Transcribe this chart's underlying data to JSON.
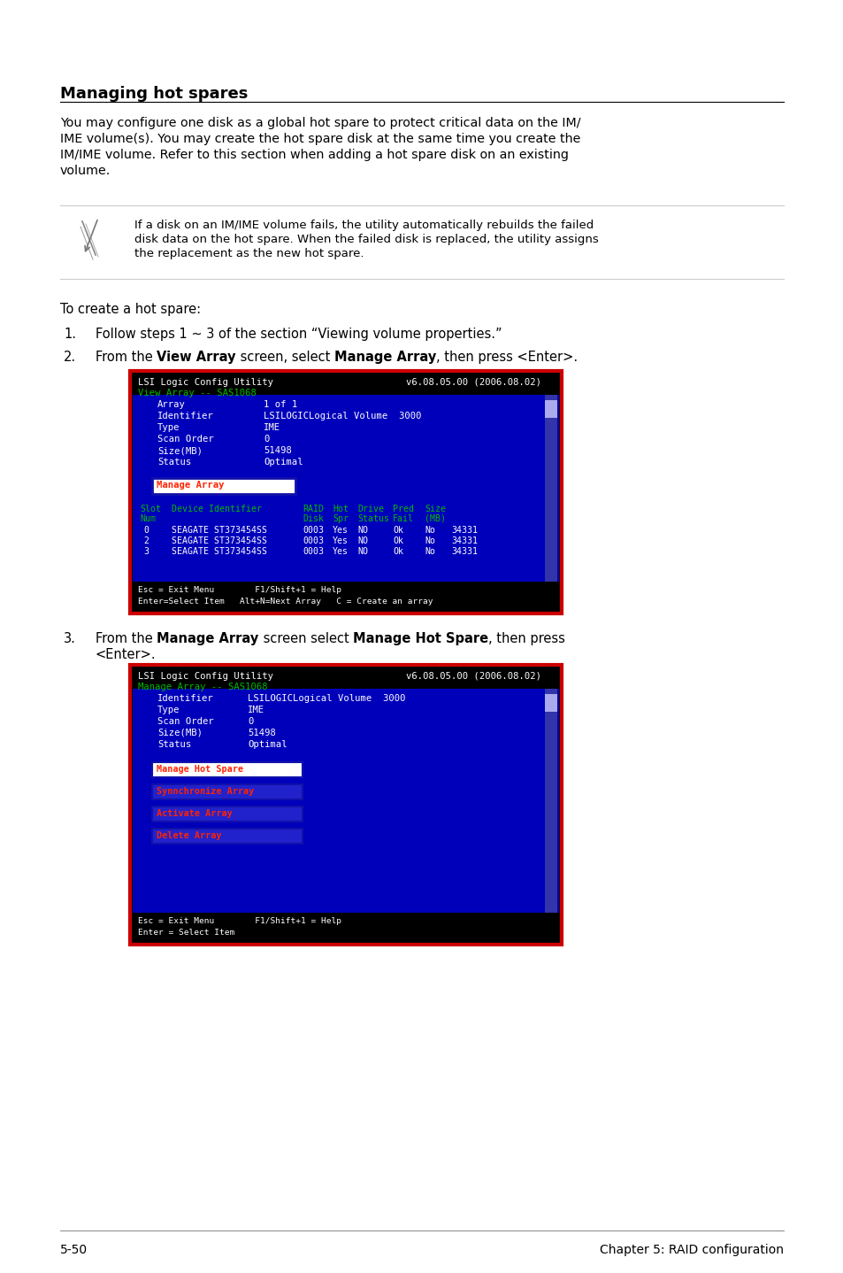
{
  "title": "Managing hot spares",
  "body_text_lines": [
    "You may configure one disk as a global hot spare to protect critical data on the IM/",
    "IME volume(s). You may create the hot spare disk at the same time you create the",
    "IM/IME volume. Refer to this section when adding a hot spare disk on an existing",
    "volume."
  ],
  "note_lines": [
    "If a disk on an IM/IME volume fails, the utility automatically rebuilds the failed",
    "disk data on the hot spare. When the failed disk is replaced, the utility assigns",
    "the replacement as the new hot spare."
  ],
  "steps_intro": "To create a hot spare:",
  "step1_text": "Follow steps 1 ∼ 3 of the section “Viewing volume properties.”",
  "step3_line2": "<Enter>.",
  "screen1": {
    "header_left": "LSI Logic Config Utility",
    "header_right": "v6.08.05.00 (2006.08.02)",
    "subtitle": "View Array -- SAS1068",
    "fields": [
      [
        "Array",
        "1 of 1"
      ],
      [
        "Identifier",
        "LSILOGICLogical Volume  3000"
      ],
      [
        "Type",
        "IME"
      ],
      [
        "Scan Order",
        "0"
      ],
      [
        "Size(MB)",
        "51498"
      ],
      [
        "Status",
        "Optimal"
      ]
    ],
    "selected_item": "Manage Array",
    "col_headers1": [
      "Slot",
      "Device Identifier",
      "RAID",
      "Hot",
      "Drive",
      "Pred",
      "Size"
    ],
    "col_headers2": [
      "Num",
      "",
      "Disk",
      "Spr",
      "Status",
      "Fail",
      "(MB)"
    ],
    "table_rows": [
      [
        "0",
        "SEAGATE ST373454SS",
        "0003",
        "Yes",
        "NO",
        "Ok",
        "No",
        "34331"
      ],
      [
        "2",
        "SEAGATE ST373454SS",
        "0003",
        "Yes",
        "NO",
        "Ok",
        "No",
        "34331"
      ],
      [
        "3",
        "SEAGATE ST373454SS",
        "0003",
        "Yes",
        "NO",
        "Ok",
        "No",
        "34331"
      ]
    ],
    "footer1": "Esc = Exit Menu        F1/Shift+1 = Help",
    "footer2": "Enter=Select Item   Alt+N=Next Array   C = Create an array"
  },
  "screen2": {
    "header_left": "LSI Logic Config Utility",
    "header_right": "v6.08.05.00 (2006.08.02)",
    "subtitle": "Manage Array -- SAS1068",
    "fields": [
      [
        "Identifier",
        "LSILOGICLogical Volume  3000"
      ],
      [
        "Type",
        "IME"
      ],
      [
        "Scan Order",
        "0"
      ],
      [
        "Size(MB)",
        "51498"
      ],
      [
        "Status",
        "Optimal"
      ]
    ],
    "menu_items": [
      "Manage Hot Spare",
      "Synnchronize Array",
      "Activate Array",
      "Delete Array"
    ],
    "selected_item": "Manage Hot Spare",
    "footer1": "Esc = Exit Menu        F1/Shift+1 = Help",
    "footer2": "Enter = Select Item"
  },
  "footer_left": "5-50",
  "footer_right": "Chapter 5: RAID configuration",
  "bg_color": "#ffffff",
  "screen_bg": "#0000bb",
  "screen_black": "#000000",
  "screen_white": "#ffffff",
  "screen_green": "#00bb00",
  "screen_red": "#ff2200",
  "border_color": "#cc0000",
  "scrollbar_bg": "#3333aa",
  "scrollbar_thumb": "#aaaaee"
}
